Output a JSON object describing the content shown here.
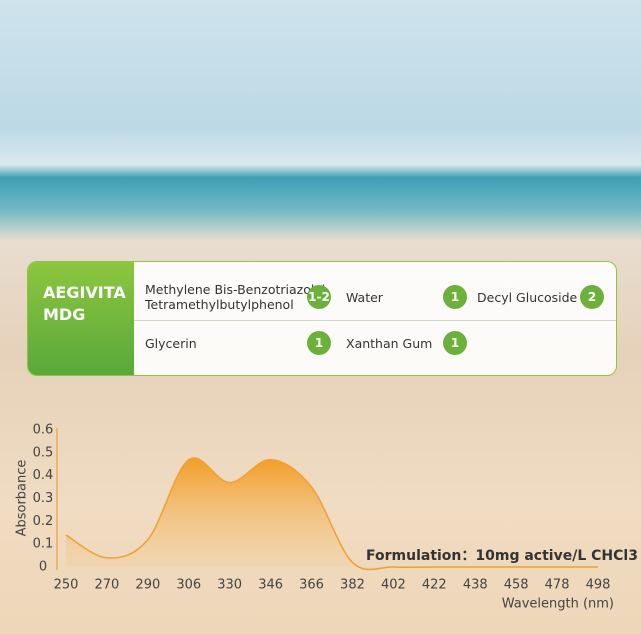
{
  "card": {
    "title": [
      "AEGIVITA",
      "MDG"
    ],
    "rows": [
      [
        {
          "name": [
            "Methylene Bis-Benzotriazolyl",
            "Tetramethylbutylphenol"
          ],
          "badge": "1-2"
        },
        {
          "name": [
            "Water"
          ],
          "badge": "1"
        },
        {
          "name": [
            "Decyl Glucoside"
          ],
          "badge": "2"
        }
      ],
      [
        {
          "name": [
            "Glycerin"
          ],
          "badge": "1"
        },
        {
          "name": [
            "Xanthan Gum"
          ],
          "badge": "1"
        }
      ]
    ]
  },
  "chart_data": {
    "type": "area",
    "y_label": "Absorbance",
    "x_label": "Wavelength (nm)",
    "annotation": "Formulation：10mg active/L CHCl3",
    "categories": [
      "250",
      "270",
      "290",
      "306",
      "330",
      "346",
      "366",
      "382",
      "402",
      "422",
      "438",
      "458",
      "478",
      "498"
    ],
    "values": [
      0.14,
      0.04,
      0.12,
      0.47,
      0.37,
      0.47,
      0.35,
      0.02,
      0,
      0,
      0,
      0,
      0,
      0
    ],
    "color": "#f0a030",
    "ylim": [
      0,
      0.6
    ],
    "yticks": [
      0,
      0.1,
      0.2,
      0.3,
      0.4,
      0.5,
      0.6
    ]
  }
}
